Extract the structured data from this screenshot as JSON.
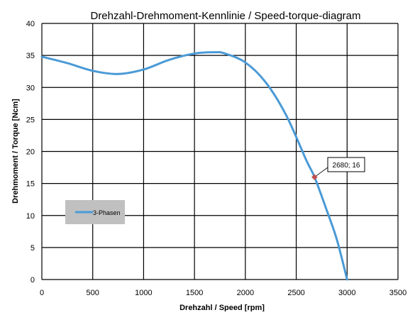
{
  "chart_data": {
    "type": "line",
    "title": "Drehzahl-Drehmoment-Kennlinie / Speed-torque-diagram",
    "xlabel": "Drehzahl / Speed [rpm]",
    "ylabel": "Drehmoment / Torque [Ncm]",
    "xlim": [
      0,
      3500
    ],
    "ylim": [
      0,
      40
    ],
    "xticks": [
      0,
      500,
      1000,
      1500,
      2000,
      2500,
      3000,
      3500
    ],
    "yticks": [
      0,
      5,
      10,
      15,
      20,
      25,
      30,
      35,
      40
    ],
    "grid": true,
    "legend_position": "left",
    "series": [
      {
        "name": "3-Phasen",
        "color": "#4a9ad6",
        "x": [
          0,
          250,
          500,
          750,
          1000,
          1250,
          1500,
          1700,
          1800,
          2000,
          2200,
          2400,
          2600,
          2680,
          2800,
          2900,
          3000
        ],
        "y": [
          34.8,
          33.8,
          32.6,
          32.1,
          32.8,
          34.3,
          35.3,
          35.5,
          35.3,
          33.9,
          30.8,
          25.7,
          18.6,
          16.0,
          10.8,
          6.2,
          0
        ]
      }
    ],
    "annotations": [
      {
        "x": 2680,
        "y": 16,
        "text": "2680; 16",
        "marker_color": "#c0504d"
      }
    ]
  }
}
